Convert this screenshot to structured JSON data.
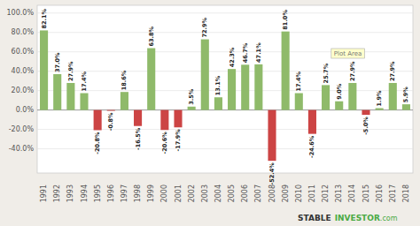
{
  "chart_data": {
    "type": "bar",
    "categories": [
      "1991",
      "1992",
      "1993",
      "1994",
      "1995",
      "1996",
      "1997",
      "1998",
      "1999",
      "2000",
      "2001",
      "2002",
      "2003",
      "2004",
      "2005",
      "2006",
      "2007",
      "2008",
      "2009",
      "2010",
      "2011",
      "2012",
      "2013",
      "2014",
      "2015",
      "2016",
      "2017",
      "2018"
    ],
    "values": [
      82.1,
      37.0,
      27.9,
      17.4,
      -20.8,
      -0.8,
      18.6,
      -16.5,
      63.8,
      -20.6,
      -17.9,
      3.5,
      72.9,
      13.1,
      42.3,
      46.7,
      47.1,
      -52.4,
      81.0,
      17.4,
      -24.6,
      25.7,
      9.0,
      27.9,
      -5.0,
      1.9,
      27.9,
      5.9
    ],
    "value_labels": [
      "82.1%",
      "37.0%",
      "27.9%",
      "17.4%",
      "-20.8%",
      "-0.8%",
      "18.6%",
      "-16.5%",
      "63.8%",
      "-20.6%",
      "-17.9%",
      "3.5%",
      "72.9%",
      "13.1%",
      "42.3%",
      "46.7%",
      "47.1%",
      "-52.4%",
      "81.0%",
      "17.4%",
      "-24.6%",
      "25.7%",
      "9.0%",
      "27.9%",
      "-5.0%",
      "1.9%",
      "27.9%",
      "5.9%"
    ],
    "colors": [
      "#8fba6a",
      "#8fba6a",
      "#8fba6a",
      "#8fba6a",
      "#cc4444",
      "#cc4444",
      "#8fba6a",
      "#cc4444",
      "#8fba6a",
      "#cc4444",
      "#cc4444",
      "#8fba6a",
      "#8fba6a",
      "#8fba6a",
      "#8fba6a",
      "#8fba6a",
      "#8fba6a",
      "#cc4444",
      "#8fba6a",
      "#8fba6a",
      "#cc4444",
      "#8fba6a",
      "#8fba6a",
      "#8fba6a",
      "#cc4444",
      "#8fba6a",
      "#8fba6a",
      "#8fba6a"
    ],
    "ylim": [
      -65,
      108
    ],
    "yticks": [
      {
        "value": -40,
        "label": "-40.0%"
      },
      {
        "value": -20,
        "label": "-20.0%"
      },
      {
        "value": 0,
        "label": "0.0%"
      },
      {
        "value": 20,
        "label": "20.0%"
      },
      {
        "value": 40,
        "label": "40.0%"
      },
      {
        "value": 60,
        "label": "60.0%"
      },
      {
        "value": 80,
        "label": "80.0%"
      },
      {
        "value": 100,
        "label": "100.0%"
      }
    ],
    "grid": true,
    "data_labels": true,
    "annotations": [
      "Plot Area",
      "STABLE",
      "INVESTOR",
      ".com"
    ]
  }
}
